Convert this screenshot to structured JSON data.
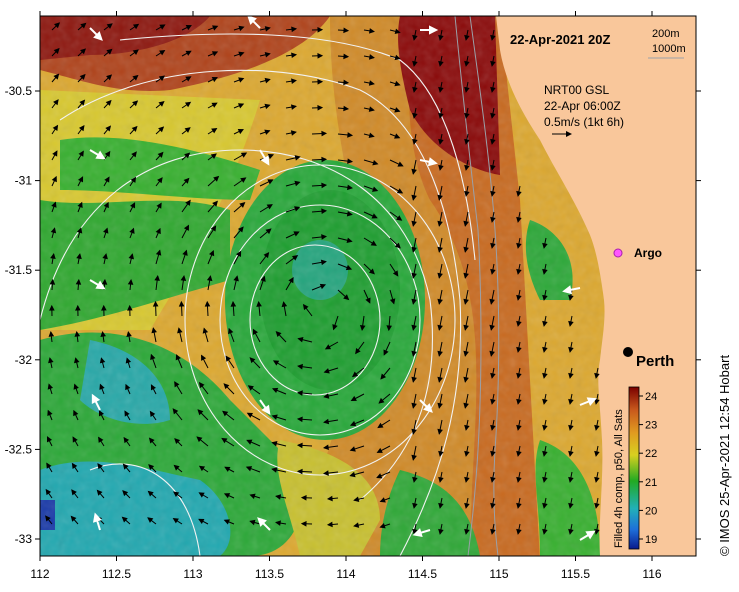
{
  "map": {
    "date_title": "22-Apr-2021 20Z",
    "legend_depths": [
      "200m",
      "1000m"
    ],
    "model_label": "NRT00 GSL",
    "model_time": "22-Apr 06:00Z",
    "arrow_scale": "0.5m/s (1kt 6h)",
    "argo_label": "Argo",
    "city_label": "Perth",
    "colorbar_title": "Filled 4h comp, p50, All Sats",
    "colorbar_ticks": [
      "24",
      "23",
      "22",
      "21",
      "20",
      "19"
    ],
    "credit": "© IMOS 25-Apr-2021 12:54 Hobart",
    "lat_ticks": [
      "-30.5",
      "-31",
      "-31.5",
      "-32",
      "-32.5",
      "-33"
    ],
    "lon_ticks": [
      "112",
      "112.5",
      "113",
      "113.5",
      "114",
      "114.5",
      "115",
      "115.5",
      "116"
    ],
    "colors": {
      "land": "#F9C79B",
      "warm": "#8B0000",
      "orange": "#D2691E",
      "yellow": "#E8D020",
      "green": "#22AA22",
      "cyan": "#22A8B0"
    }
  }
}
